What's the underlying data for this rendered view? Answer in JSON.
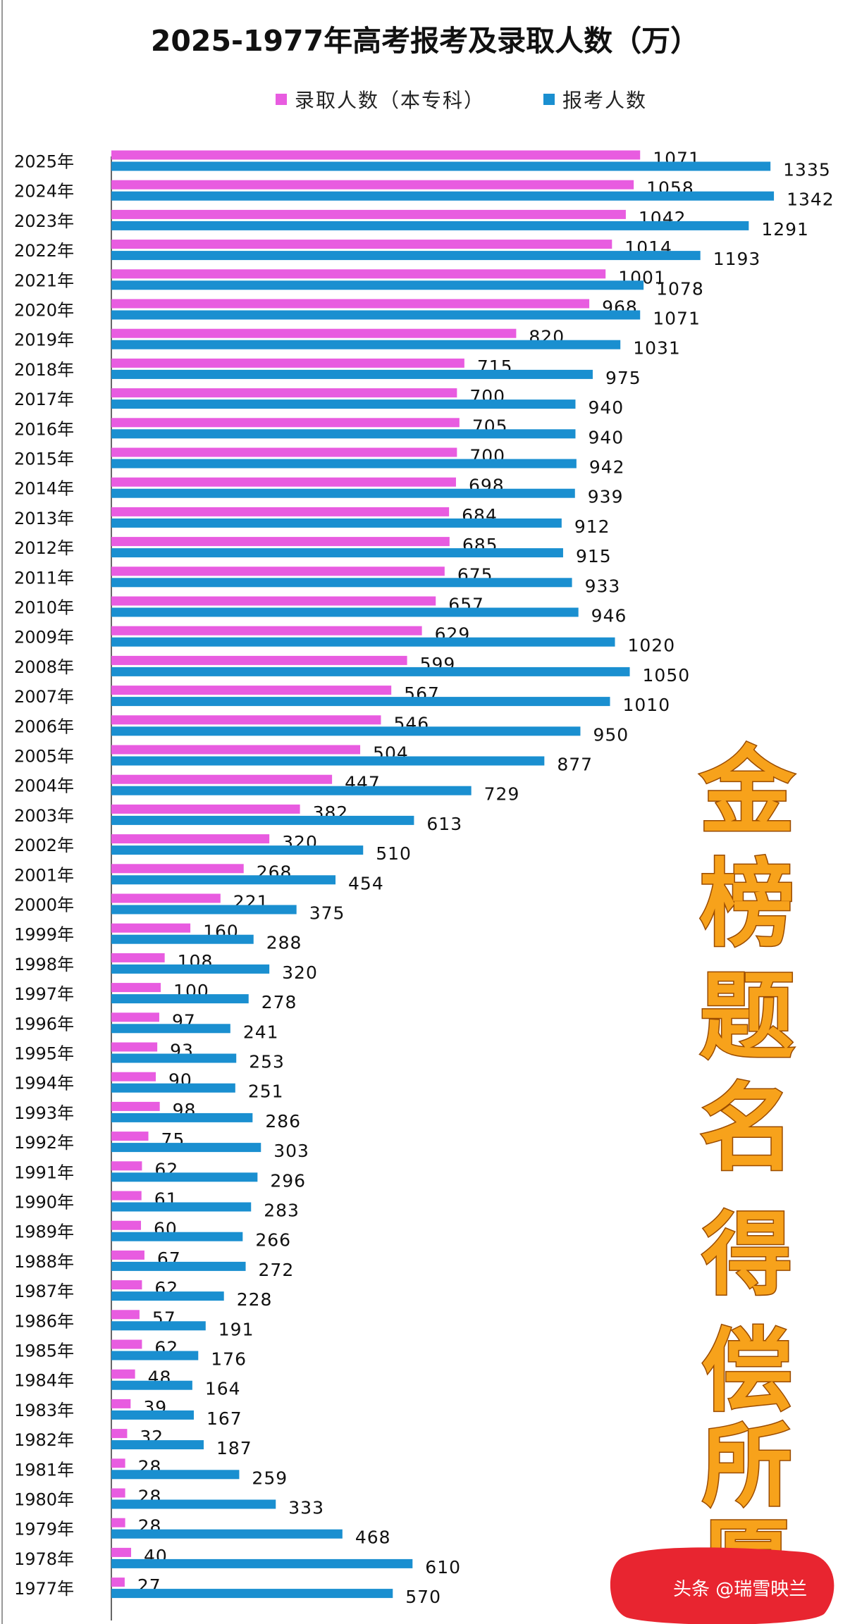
{
  "chart_data": {
    "type": "bar",
    "orientation": "horizontal",
    "title": "2025-1977年高考报考及录取人数（万）",
    "categories": [
      "2025年",
      "2024年",
      "2023年",
      "2022年",
      "2021年",
      "2020年",
      "2019年",
      "2018年",
      "2017年",
      "2016年",
      "2015年",
      "2014年",
      "2013年",
      "2012年",
      "2011年",
      "2010年",
      "2009年",
      "2008年",
      "2007年",
      "2006年",
      "2005年",
      "2004年",
      "2003年",
      "2002年",
      "2001年",
      "2000年",
      "1999年",
      "1998年",
      "1997年",
      "1996年",
      "1995年",
      "1994年",
      "1993年",
      "1992年",
      "1991年",
      "1990年",
      "1989年",
      "1988年",
      "1987年",
      "1986年",
      "1985年",
      "1984年",
      "1983年",
      "1982年",
      "1981年",
      "1980年",
      "1979年",
      "1978年",
      "1977年"
    ],
    "series": [
      {
        "name": "录取人数（本专科）",
        "color": "#e85ce0",
        "values": [
          1071,
          1058,
          1042,
          1014,
          1001,
          968,
          820,
          715,
          700,
          705,
          700,
          698,
          684,
          685,
          675,
          657,
          629,
          599,
          567,
          546,
          504,
          447,
          382,
          320,
          268,
          221,
          160,
          108,
          100,
          97,
          93,
          90,
          98,
          75,
          62,
          61,
          60,
          67,
          62,
          57,
          62,
          48,
          39,
          32,
          28,
          28,
          28,
          40,
          27
        ]
      },
      {
        "name": "报考人数",
        "color": "#1a8fd0",
        "values": [
          1335,
          1342,
          1291,
          1193,
          1078,
          1071,
          1031,
          975,
          940,
          940,
          942,
          939,
          912,
          915,
          933,
          946,
          1020,
          1050,
          1010,
          950,
          877,
          729,
          613,
          510,
          454,
          375,
          288,
          320,
          278,
          241,
          253,
          251,
          286,
          303,
          296,
          283,
          266,
          272,
          228,
          191,
          176,
          164,
          167,
          187,
          259,
          333,
          468,
          610,
          570
        ]
      }
    ],
    "legend_position": "top",
    "grid": false
  },
  "overlay": {
    "slogan": [
      "金",
      "榜",
      "题",
      "名",
      "得",
      "偿",
      "所",
      "愿"
    ],
    "slogan_color": "#f7a21b",
    "watermark": "头条 @瑞雪映兰",
    "watermark_color": "#e82530"
  }
}
